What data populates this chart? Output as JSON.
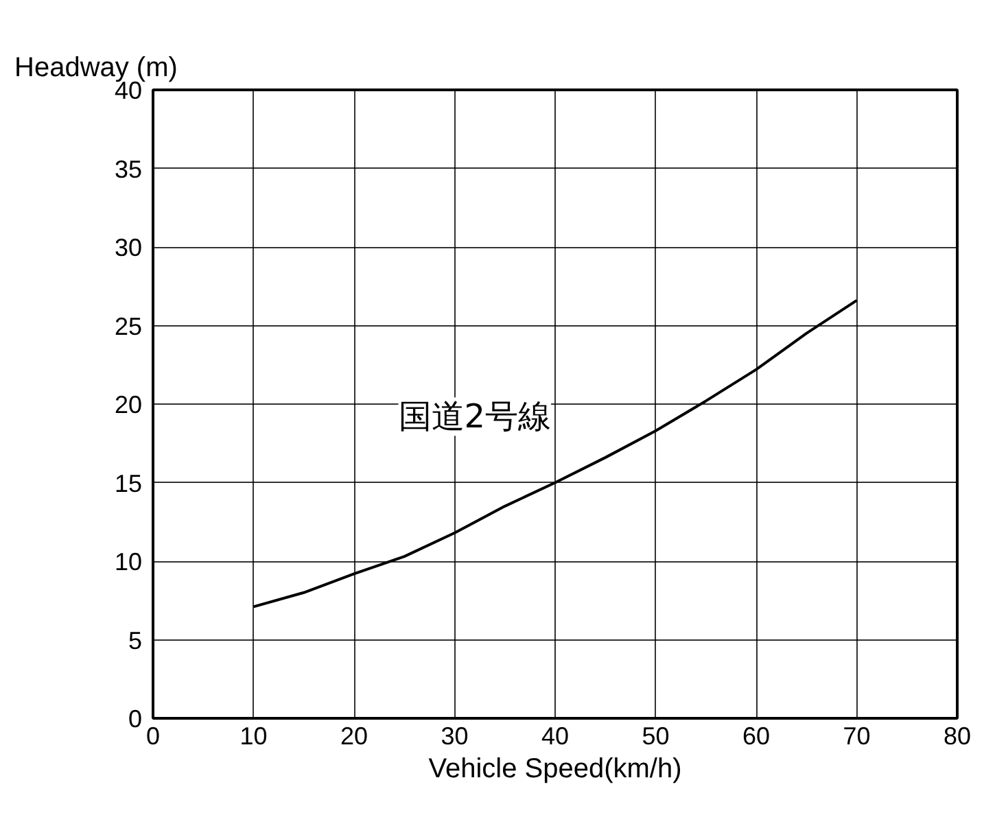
{
  "chart_data": {
    "type": "line",
    "xlabel": "Vehicle Speed(km/h)",
    "ylabel": "Headway (m)",
    "x": [
      10,
      15,
      20,
      25,
      30,
      35,
      40,
      45,
      50,
      55,
      60,
      65,
      70
    ],
    "series": [
      {
        "color": "#000000",
        "values": [
          7.1,
          8.0,
          9.2,
          10.3,
          11.8,
          13.5,
          15.0,
          16.6,
          18.3,
          20.2,
          22.2,
          24.5,
          26.6
        ]
      }
    ],
    "annotations": [
      "国道2号線"
    ],
    "xlim": [
      0,
      80
    ],
    "ylim": [
      0,
      40
    ],
    "xticks": [
      0,
      10,
      20,
      30,
      40,
      50,
      60,
      70,
      80
    ],
    "yticks": [
      0,
      5,
      10,
      15,
      20,
      25,
      30,
      35,
      40
    ],
    "grid": true,
    "marker": "none",
    "line_style": "solid"
  }
}
